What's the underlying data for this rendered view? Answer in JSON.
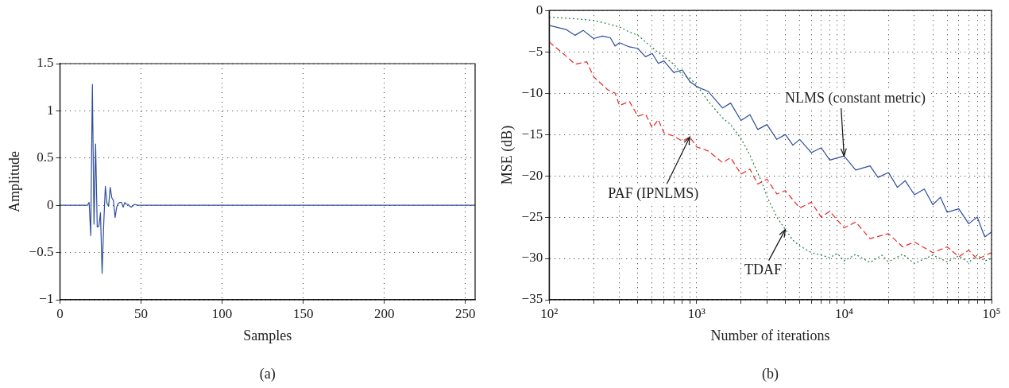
{
  "chart_data": [
    {
      "type": "line",
      "xlabel": "Samples",
      "ylabel": "Amplitude",
      "annotations": [
        "(a)"
      ],
      "xlim": [
        0,
        256
      ],
      "xticks": [
        0,
        50,
        100,
        150,
        200,
        250
      ],
      "ylim": [
        -1,
        1.5
      ],
      "yticks": [
        {
          "value": -1,
          "label": "−1"
        },
        {
          "value": -0.5,
          "label": "−0.5"
        },
        0,
        0.5,
        1,
        1.5
      ],
      "grid": true,
      "legend": false,
      "line_style": "solid",
      "marker": "none",
      "series": [
        {
          "color": "#2e4d9e",
          "x": [
            0,
            17,
            18,
            19,
            20,
            21,
            22,
            23,
            24,
            25,
            26,
            27,
            28,
            29,
            30,
            31,
            32,
            33,
            34,
            35,
            36,
            37,
            38,
            39,
            40,
            41,
            42,
            43,
            44,
            46,
            48,
            50,
            256
          ],
          "values": [
            0,
            0,
            0.03,
            -0.32,
            1.28,
            -0.2,
            0.65,
            -0.23,
            -0.22,
            -0.08,
            -0.72,
            -0.2,
            0.2,
            0.02,
            -0.01,
            0.19,
            0.08,
            0.05,
            -0.13,
            -0.02,
            0.02,
            0.03,
            0.03,
            -0.02,
            0.03,
            0.01,
            0.01,
            -0.01,
            -0.02,
            0.01,
            0,
            0,
            0
          ]
        }
      ]
    },
    {
      "type": "line",
      "xlabel": "Number of iterations",
      "ylabel": "MSE (dB)",
      "annotations": [
        {
          "text": "NLMS (constant metric)",
          "x": 10000,
          "y": -17.6
        },
        {
          "text": "PAF (IPNLMS)",
          "x": 900,
          "y": -15.3
        },
        {
          "text": "TDAF",
          "x": 4000,
          "y": -26.5
        },
        "(b)"
      ],
      "log": "x",
      "xlim": [
        100,
        100000
      ],
      "xticks": [
        {
          "value": 100,
          "label": "10²"
        },
        {
          "value": 200,
          "label": null
        },
        {
          "value": 300,
          "label": null
        },
        {
          "value": 400,
          "label": null
        },
        {
          "value": 500,
          "label": null
        },
        {
          "value": 600,
          "label": null
        },
        {
          "value": 700,
          "label": null
        },
        {
          "value": 800,
          "label": null
        },
        {
          "value": 900,
          "label": null
        },
        {
          "value": 1000,
          "label": "10³"
        },
        {
          "value": 2000,
          "label": null
        },
        {
          "value": 3000,
          "label": null
        },
        {
          "value": 4000,
          "label": null
        },
        {
          "value": 5000,
          "label": null
        },
        {
          "value": 6000,
          "label": null
        },
        {
          "value": 7000,
          "label": null
        },
        {
          "value": 8000,
          "label": null
        },
        {
          "value": 9000,
          "label": null
        },
        {
          "value": 10000,
          "label": "10⁴"
        },
        {
          "value": 20000,
          "label": null
        },
        {
          "value": 30000,
          "label": null
        },
        {
          "value": 40000,
          "label": null
        },
        {
          "value": 50000,
          "label": null
        },
        {
          "value": 60000,
          "label": null
        },
        {
          "value": 70000,
          "label": null
        },
        {
          "value": 80000,
          "label": null
        },
        {
          "value": 90000,
          "label": null
        },
        {
          "value": 100000,
          "label": "10⁵"
        }
      ],
      "ylim": [
        -35,
        0
      ],
      "yticks": [
        {
          "value": -35,
          "label": "−35"
        },
        {
          "value": -30,
          "label": "−30"
        },
        {
          "value": -25,
          "label": "−25"
        },
        {
          "value": -20,
          "label": "−20"
        },
        {
          "value": -15,
          "label": "−15"
        },
        {
          "value": -10,
          "label": "−10"
        },
        {
          "value": -5,
          "label": "−5"
        },
        0
      ],
      "grid": true,
      "legend": false,
      "marker": "none",
      "series": [
        {
          "color": "#2e4d9e",
          "line_style": "solid",
          "x": [
            100,
            130,
            150,
            170,
            200,
            230,
            260,
            280,
            300,
            350,
            400,
            450,
            500,
            550,
            600,
            700,
            800,
            900,
            1000,
            1200,
            1500,
            1700,
            2000,
            2300,
            2600,
            3000,
            3500,
            4000,
            4500,
            5000,
            6000,
            7000,
            8000,
            10000,
            12000,
            15000,
            17000,
            20000,
            23000,
            26000,
            30000,
            35000,
            40000,
            45000,
            50000,
            60000,
            70000,
            80000,
            90000,
            100000
          ],
          "values": [
            -1.8,
            -2.3,
            -3,
            -2.4,
            -3.4,
            -3.1,
            -3.3,
            -4.3,
            -3.9,
            -4.4,
            -4.6,
            -5.6,
            -5.2,
            -6.4,
            -6.1,
            -7.5,
            -7.2,
            -8.6,
            -9.2,
            -9.8,
            -11.8,
            -11.2,
            -13.3,
            -12.6,
            -14.4,
            -13.8,
            -15.6,
            -15.0,
            -16.3,
            -15.6,
            -17.2,
            -16.6,
            -18.1,
            -17.6,
            -19.3,
            -18.8,
            -20.2,
            -19.6,
            -21.4,
            -20.6,
            -22.3,
            -21.6,
            -23.5,
            -22.6,
            -24.4,
            -24.0,
            -25.8,
            -25.0,
            -27.4,
            -26.8
          ]
        },
        {
          "color": "#e8262a",
          "line_style": "dashed",
          "x": [
            100,
            130,
            150,
            180,
            200,
            250,
            280,
            300,
            350,
            400,
            450,
            500,
            550,
            600,
            700,
            800,
            900,
            1000,
            1200,
            1500,
            1700,
            2000,
            2300,
            2600,
            3000,
            3500,
            4000,
            5000,
            6000,
            7000,
            8000,
            10000,
            12000,
            15000,
            20000,
            25000,
            30000,
            40000,
            50000,
            60000,
            70000,
            80000,
            100000
          ],
          "values": [
            -3.8,
            -5.5,
            -6.5,
            -6.2,
            -8,
            -9.6,
            -10,
            -11.5,
            -11,
            -12.8,
            -12.5,
            -14.2,
            -13.2,
            -14.8,
            -15.2,
            -15.8,
            -15.3,
            -16.5,
            -17,
            -18.4,
            -17.8,
            -19.8,
            -19.2,
            -21,
            -20.4,
            -22.2,
            -21.8,
            -23.9,
            -23.2,
            -25,
            -24.3,
            -26.3,
            -25.6,
            -27.6,
            -27.0,
            -28.6,
            -28.0,
            -29.3,
            -28.6,
            -29.8,
            -29.0,
            -30.1,
            -29.3
          ]
        },
        {
          "color": "#1a7d3a",
          "line_style": "dotted",
          "x": [
            100,
            150,
            200,
            250,
            300,
            350,
            400,
            450,
            500,
            600,
            700,
            800,
            900,
            1000,
            1200,
            1500,
            1700,
            2000,
            2300,
            2500,
            2800,
            3000,
            3500,
            4000,
            4500,
            5000,
            5500,
            6000,
            7000,
            8000,
            9000,
            10000,
            12000,
            15000,
            18000,
            20000,
            25000,
            30000,
            40000,
            50000,
            60000,
            70000,
            80000,
            90000,
            100000
          ],
          "values": [
            -0.8,
            -1,
            -1.2,
            -1.6,
            -2,
            -2.6,
            -3,
            -3.8,
            -4.5,
            -5.6,
            -6.5,
            -7.8,
            -8.2,
            -9,
            -11,
            -13,
            -13.8,
            -15.5,
            -17.5,
            -19,
            -21,
            -22.5,
            -25,
            -26.5,
            -27.8,
            -28.5,
            -28.9,
            -29.3,
            -29.6,
            -29.9,
            -29.4,
            -30.3,
            -29.5,
            -30.5,
            -29.6,
            -30.4,
            -29.5,
            -30.6,
            -29.6,
            -30.4,
            -29.7,
            -30.5,
            -29.6,
            -30.3,
            -30
          ]
        }
      ]
    }
  ]
}
